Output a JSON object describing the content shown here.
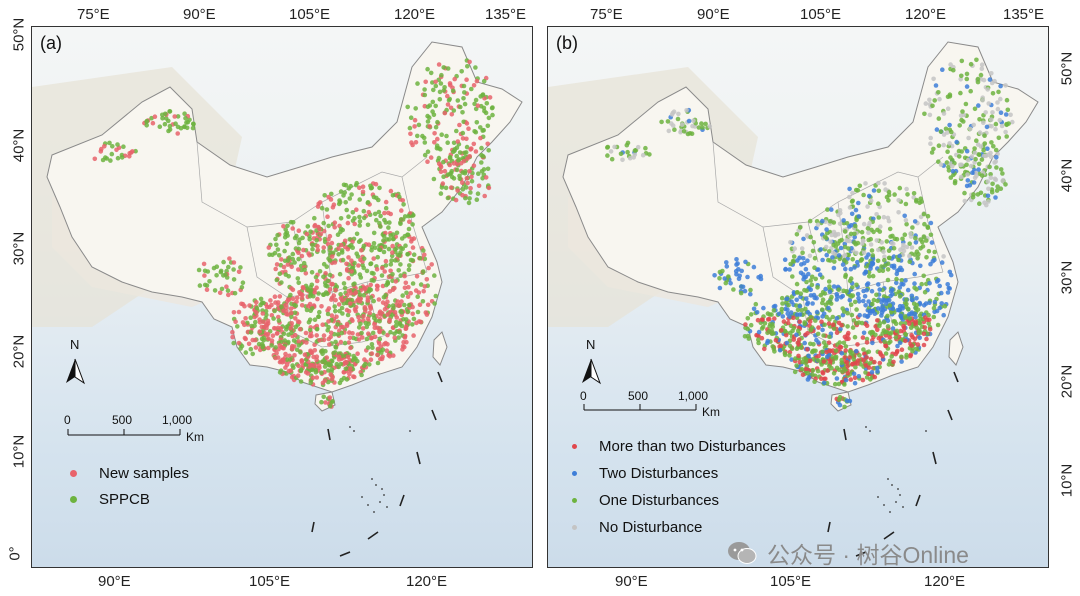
{
  "panels": [
    {
      "label": "(a)",
      "top_ticks": [
        "75°E",
        "90°E",
        "105°E",
        "120°E",
        "135°E"
      ],
      "bottom_ticks": [
        "90°E",
        "105°E",
        "120°E"
      ],
      "left_ticks": [
        "50°N",
        "40°N",
        "30°N",
        "20°N",
        "10°N",
        "0°"
      ],
      "legend": [
        {
          "label": "New samples",
          "color": "#e8636b"
        },
        {
          "label": "SPPCB",
          "color": "#6db33f"
        }
      ],
      "scale": {
        "labels": [
          "0",
          "500",
          "1,000"
        ],
        "unit": "Km"
      },
      "north": "N"
    },
    {
      "label": "(b)",
      "top_ticks": [
        "75°E",
        "90°E",
        "105°E",
        "120°E",
        "135°E"
      ],
      "bottom_ticks": [
        "90°E",
        "105°E",
        "120°E"
      ],
      "right_ticks": [
        "50°N",
        "40°N",
        "30°N",
        "20°N",
        "10°N"
      ],
      "legend": [
        {
          "label": "More than two Disturbances",
          "color": "#e0474c"
        },
        {
          "label": "Two Disturbances",
          "color": "#3d7ed8"
        },
        {
          "label": "One Disturbances",
          "color": "#6db33f"
        },
        {
          "label": "No Disturbance",
          "color": "#c4c4c4"
        }
      ],
      "scale": {
        "labels": [
          "0",
          "500",
          "1,000"
        ],
        "unit": "Km"
      },
      "north": "N"
    }
  ],
  "watermark": "公众号 · 树谷Online"
}
